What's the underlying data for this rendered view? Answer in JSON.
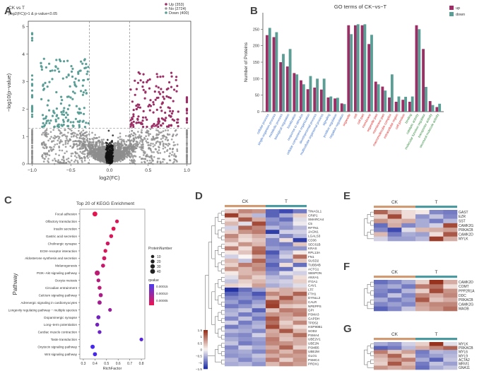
{
  "panel_labels": [
    "A",
    "B",
    "C",
    "D",
    "E",
    "F",
    "G"
  ],
  "chart_data": [
    {
      "panel": "A",
      "type": "scatter",
      "title": "CK vs T",
      "subtitle": "|log2(FC)|>1 & p-value<0.05",
      "xlabel": "log2(FC)",
      "ylabel": "−log10(p−value)",
      "xlim": [
        -1.05,
        1.05
      ],
      "ylim": [
        0,
        5.2
      ],
      "xticks": [
        -1.0,
        -0.5,
        0.0,
        0.5,
        1.0
      ],
      "xtick_labels": [
        "−1.0",
        "−0.5",
        "0.0",
        "0.5",
        "1.0"
      ],
      "yticks": [
        0,
        1,
        2,
        3,
        4,
        5
      ],
      "xthresholds": [
        -0.26,
        0.26
      ],
      "ythreshold": 1.3,
      "legend": [
        {
          "label": "Up (353)",
          "color": "#9b2f65"
        },
        {
          "label": "No (2724)",
          "color": "#9a9a9a"
        },
        {
          "label": "Down (400)",
          "color": "#5b9e96"
        }
      ],
      "counts": {
        "up": 353,
        "no": 2724,
        "down": 400
      }
    },
    {
      "panel": "B",
      "type": "bar",
      "title": "GO terms of CK−vs−T",
      "ylabel": "Number of Proteins",
      "ylim": [
        0,
        300
      ],
      "yticks": [
        0,
        50,
        100,
        150,
        200,
        250
      ],
      "groups": [
        {
          "color": "#3a70c9",
          "categories": [
            "cellular process",
            "single-organism process",
            "metabolic process",
            "biological regulation",
            "localization",
            "response to stimulus",
            "cellular component organization",
            "developmental process",
            "multicellular organismal process",
            "signaling",
            "positive regulation",
            "negative regulation"
          ],
          "up": [
            232,
            226,
            150,
            137,
            117,
            95,
            68,
            73,
            67,
            43,
            40,
            25
          ],
          "down": [
            254,
            241,
            175,
            190,
            113,
            83,
            108,
            100,
            100,
            46,
            42,
            23
          ]
        },
        {
          "color": "#e02323",
          "categories": [
            "organelle",
            "cell",
            "cell part",
            "membrane",
            "organelle part",
            "membrane part",
            "macromolecular complex",
            "extracellular region",
            "cell junction"
          ],
          "up": [
            262,
            262,
            262,
            205,
            91,
            76,
            43,
            30,
            36
          ],
          "down": [
            235,
            265,
            265,
            233,
            83,
            64,
            113,
            46,
            45
          ]
        },
        {
          "color": "#2e8b3c",
          "categories": [
            "binding",
            "catalytic activity",
            "molecular function regulator",
            "transporter activity",
            "structural molecule activity"
          ],
          "up": [
            30,
            262,
            190,
            32,
            14
          ],
          "down": [
            46,
            250,
            75,
            20,
            24
          ]
        }
      ],
      "legend": [
        {
          "label": "up",
          "color": "#9b2f65"
        },
        {
          "label": "down",
          "color": "#5b9e96"
        }
      ]
    },
    {
      "panel": "C",
      "type": "scatter",
      "title": "Top 20 of KEGG Enrichment",
      "xlabel": "RichFactor",
      "ylabel": "Pathway",
      "xlim": [
        0.27,
        0.83
      ],
      "xticks": [
        0.3,
        0.4,
        0.5,
        0.6,
        0.7,
        0.8
      ],
      "pathways": [
        "Focal adhesion",
        "Olfactory transduction",
        "Insulin secretion",
        "Gastric acid secretion",
        "Cholinergic synapse",
        "ECM−receptor interaction",
        "Aldosterone synthesis and secretion",
        "Melanogenesis",
        "PI3K−Akt signaling pathway",
        "Oocyte meiosis",
        "Circadian entrainment",
        "Calcium signaling pathway",
        "Adrenergic signaling in cardiomyocytes",
        "Longevity regulating pathway − multiple species",
        "Dopaminergic synapse",
        "Long−term potentiation",
        "Cardiac muscle contraction",
        "Taste transduction",
        "Oxytocin signaling pathway",
        "Wnt signaling pathway"
      ],
      "rich_factor": [
        0.4,
        0.59,
        0.56,
        0.54,
        0.51,
        0.49,
        0.48,
        0.47,
        0.42,
        0.43,
        0.44,
        0.45,
        0.44,
        0.53,
        0.43,
        0.42,
        0.44,
        0.8,
        0.38,
        0.4
      ],
      "protein_number": [
        25,
        10,
        14,
        12,
        13,
        11,
        15,
        13,
        28,
        11,
        12,
        14,
        15,
        10,
        14,
        12,
        11,
        10,
        16,
        14
      ],
      "qvalue": [
        1e-05,
        2e-05,
        1e-05,
        2e-05,
        3e-05,
        2e-05,
        3e-05,
        4e-05,
        5e-05,
        6e-05,
        5e-05,
        7e-05,
        8e-05,
        9e-05,
        0.00013,
        0.00013,
        0.00014,
        0.00016,
        0.00018,
        0.00018
      ],
      "size_legend_title": "ProteinNumber",
      "size_legend": [
        10,
        20,
        30,
        40
      ],
      "color_legend_title": "qvalue",
      "color_legend": [
        "0.00015",
        "0.00010",
        "0.00005"
      ]
    },
    {
      "panel": "D",
      "type": "heatmap",
      "group_labels": [
        "CK",
        "T"
      ],
      "scale_ticks": [
        "1.5",
        "1",
        "0.5",
        "0",
        "−0.5",
        "−1",
        "−1.5"
      ],
      "rows": [
        "TINAGL1",
        "CRIP1",
        "SMARCA4",
        "C5",
        "RFTN1",
        "JAGN1",
        "LGALS3",
        "CD36",
        "SEC61B",
        "KRAS",
        "RPL13A",
        "FN1",
        "SUSD2",
        "TUBB4B",
        "ACTG1",
        "SBSPON",
        "ANXA1",
        "ITGA1",
        "CAV1",
        "LTF",
        "FTH1",
        "DYNLL2",
        "CALR",
        "NPEPPS",
        "GPI",
        "PSMA3",
        "GAPDH",
        "TPD52",
        "HSP90B1",
        "SOD2",
        "PSMA4",
        "UBE2V1",
        "UBE2N",
        "PSMB5",
        "UBE2M",
        "GLO1",
        "PSMC4",
        "PRDX1"
      ],
      "values": [
        [
          0.4,
          0.9,
          0.8,
          -1.2,
          -1.4,
          -1.0
        ],
        [
          1.5,
          0.5,
          -0.5,
          -1.2,
          -0.6,
          0.3
        ],
        [
          0.2,
          1.3,
          0.6,
          -0.8,
          -1.1,
          -0.2
        ],
        [
          0.5,
          -0.2,
          1.4,
          -0.9,
          -0.7,
          -0.1
        ],
        [
          -0.3,
          1.2,
          0.9,
          -0.5,
          -0.8,
          -0.5
        ],
        [
          0.3,
          0.8,
          1.0,
          -1.5,
          -0.3,
          -0.3
        ],
        [
          0.9,
          0.3,
          0.6,
          -0.4,
          -0.9,
          -0.5
        ],
        [
          0.6,
          0.2,
          0.4,
          -0.9,
          0.2,
          -1.5
        ],
        [
          0.2,
          0.8,
          0.5,
          -0.9,
          -1.0,
          0.4
        ],
        [
          1.0,
          0.2,
          1.1,
          -0.7,
          -0.8,
          -0.8
        ],
        [
          0.1,
          0.4,
          1.2,
          -1.3,
          -0.5,
          0.1
        ],
        [
          -0.3,
          0.0,
          0.6,
          -1.0,
          -0.3,
          1.1
        ],
        [
          0.5,
          -0.4,
          1.2,
          -0.9,
          -0.8,
          0.4
        ],
        [
          0.3,
          1.0,
          0.8,
          -1.2,
          0.2,
          -1.1
        ],
        [
          0.8,
          0.5,
          0.9,
          -1.0,
          -1.1,
          -0.1
        ],
        [
          0.1,
          0.5,
          0.6,
          -0.8,
          -0.2,
          -0.3
        ],
        [
          -0.2,
          0.7,
          0.3,
          -0.5,
          -0.6,
          0.2
        ],
        [
          -0.4,
          0.3,
          0.5,
          -0.4,
          -0.3,
          0.3
        ],
        [
          0.3,
          0.2,
          0.7,
          -0.6,
          -0.4,
          -0.2
        ],
        [
          -1.6,
          -1.1,
          -0.7,
          0.4,
          0.6,
          0.4
        ],
        [
          -1.2,
          -0.9,
          -1.3,
          0.9,
          0.6,
          1.2
        ],
        [
          -0.9,
          -0.8,
          -1.0,
          0.5,
          1.3,
          0.6
        ],
        [
          -0.7,
          -1.1,
          -0.7,
          1.4,
          0.8,
          0.7
        ],
        [
          -1.0,
          -0.8,
          -0.5,
          1.5,
          0.4,
          0.3
        ],
        [
          -0.6,
          -0.4,
          -1.2,
          0.4,
          1.0,
          0.9
        ],
        [
          -0.5,
          -1.0,
          -0.7,
          0.8,
          0.7,
          1.0
        ],
        [
          -0.9,
          -0.4,
          -1.0,
          1.3,
          0.6,
          0.4
        ],
        [
          -0.3,
          -1.0,
          -0.6,
          1.1,
          0.3,
          0.9
        ],
        [
          -1.0,
          -0.7,
          -0.5,
          1.4,
          0.5,
          0.2
        ],
        [
          -0.5,
          -0.6,
          -0.9,
          0.6,
          1.3,
          0.5
        ],
        [
          -0.8,
          -0.9,
          -0.3,
          0.7,
          0.5,
          1.1
        ],
        [
          -0.6,
          -0.8,
          -0.7,
          1.0,
          0.4,
          0.6
        ],
        [
          -0.4,
          -1.0,
          -0.8,
          0.9,
          0.8,
          0.6
        ],
        [
          -0.9,
          -0.3,
          -0.6,
          0.6,
          1.2,
          0.3
        ],
        [
          -0.7,
          -0.6,
          -0.9,
          0.9,
          0.5,
          0.9
        ],
        [
          -0.8,
          -0.7,
          -0.4,
          0.6,
          0.8,
          0.7
        ],
        [
          -0.5,
          -0.9,
          -0.6,
          1.0,
          0.3,
          0.8
        ],
        [
          -0.6,
          -0.5,
          -0.8,
          0.5,
          0.9,
          0.7
        ]
      ]
    },
    {
      "panel": "E",
      "type": "heatmap",
      "group_labels": [
        "CK",
        "T"
      ],
      "rows": [
        "GAST",
        "EZR",
        "SST",
        "CAMK2G",
        "PRKACB",
        "CAMK2D",
        "MYLK"
      ],
      "values": [
        [
          1.2,
          0.6,
          0.2,
          0.1,
          -0.9,
          -1.0
        ],
        [
          0.3,
          1.4,
          0.2,
          -0.8,
          -0.4,
          -0.9
        ],
        [
          0.8,
          0.5,
          0.6,
          -0.6,
          -1.0,
          -0.5
        ],
        [
          -1.1,
          0.6,
          -0.9,
          -0.6,
          -0.3,
          1.4
        ],
        [
          -0.9,
          -1.4,
          -0.2,
          0.5,
          0.6,
          0.7
        ],
        [
          0.5,
          -1.0,
          -0.6,
          -0.7,
          0.2,
          1.3
        ],
        [
          -0.3,
          -0.7,
          -0.7,
          -0.5,
          1.5,
          0.6
        ]
      ]
    },
    {
      "panel": "F",
      "type": "heatmap",
      "group_labels": [
        "CK",
        "T"
      ],
      "rows": [
        "CAMK2D",
        "COMT",
        "PPP2R1A",
        "DDC",
        "PRKACB",
        "CAMK2G",
        "MAOB"
      ],
      "values": [
        [
          -1.1,
          -0.9,
          -0.6,
          0.3,
          1.6,
          0.6
        ],
        [
          -0.8,
          -0.6,
          -1.0,
          1.0,
          1.1,
          0.2
        ],
        [
          -0.9,
          -1.1,
          -0.5,
          0.3,
          1.4,
          0.8
        ],
        [
          -1.0,
          -0.4,
          -0.9,
          0.9,
          0.6,
          0.9
        ],
        [
          -0.6,
          -1.0,
          -0.7,
          1.3,
          0.4,
          0.6
        ],
        [
          -0.9,
          -0.7,
          -0.9,
          0.7,
          0.9,
          0.9
        ],
        [
          -1.2,
          -0.9,
          -0.4,
          0.6,
          0.8,
          1.1
        ]
      ]
    },
    {
      "panel": "G",
      "type": "heatmap",
      "group_labels": [
        "CK",
        "T"
      ],
      "rows": [
        "MYLK",
        "PRKACB",
        "MYL6",
        "MYL9",
        "ACTA2",
        "MRVI1",
        "GNA11"
      ],
      "values": [
        [
          -0.6,
          -0.8,
          -0.3,
          0.3,
          1.6,
          -0.2
        ],
        [
          -1.2,
          -1.0,
          -0.5,
          0.6,
          0.9,
          1.2
        ],
        [
          1.0,
          0.4,
          0.7,
          -1.0,
          -0.5,
          -0.6
        ],
        [
          0.6,
          1.2,
          0.3,
          -0.9,
          -0.7,
          -0.5
        ],
        [
          0.4,
          0.8,
          1.0,
          -0.6,
          -1.2,
          -0.4
        ],
        [
          0.3,
          1.3,
          0.5,
          -1.0,
          -0.4,
          -0.7
        ],
        [
          0.8,
          0.6,
          0.7,
          -1.1,
          -0.6,
          -0.4
        ]
      ]
    }
  ]
}
